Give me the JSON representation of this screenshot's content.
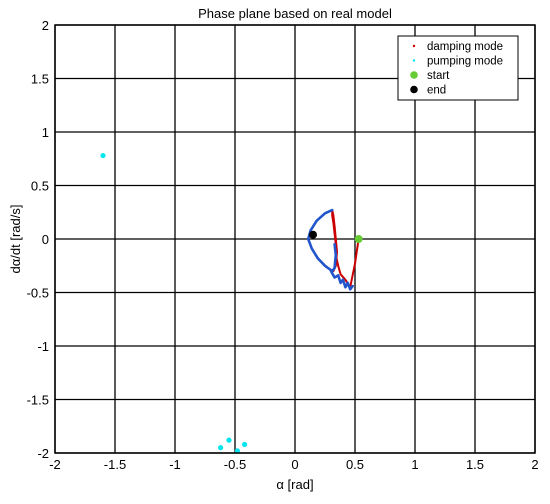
{
  "chart_data": {
    "type": "line",
    "title": "Phase plane based on real model",
    "xlabel": "α [rad]",
    "ylabel": "dα/dt [rad/s]",
    "xlim": [
      -2,
      2
    ],
    "ylim": [
      -2,
      2
    ],
    "xticks": [
      -2,
      -1.5,
      -1,
      -0.5,
      0,
      0.5,
      1,
      1.5,
      2
    ],
    "yticks": [
      -2,
      -1.5,
      -1,
      -0.5,
      0,
      0.5,
      1,
      1.5,
      2
    ],
    "xtick_labels": [
      "-2",
      "-1.5",
      "-1",
      "-0.5",
      "0",
      "0.5",
      "1",
      "1.5",
      "2"
    ],
    "ytick_labels": [
      "-2",
      "-1.5",
      "-1",
      "-0.5",
      "0",
      "0.5",
      "1",
      "1.5",
      "2"
    ],
    "grid": true,
    "legend_position": "top-right",
    "legend": [
      {
        "label": "damping mode",
        "color": "#cc0000",
        "marker": "dot"
      },
      {
        "label": "pumping mode",
        "color": "#00e5ee",
        "marker": "dot"
      },
      {
        "label": "start",
        "color": "#66cc33",
        "marker": "filled-circle"
      },
      {
        "label": "end",
        "color": "#000000",
        "marker": "filled-circle"
      }
    ],
    "series": [
      {
        "name": "damping mode",
        "color": "#cc0000",
        "x": [
          0.53,
          0.5,
          0.46,
          0.42,
          0.38,
          0.36,
          0.34,
          0.34,
          0.33,
          0.32,
          0.31,
          0.31,
          0.32,
          0.33,
          0.34,
          0.35,
          0.34,
          0.32
        ],
        "y": [
          0.0,
          -0.23,
          -0.45,
          -0.38,
          -0.33,
          -0.25,
          -0.15,
          -0.05,
          0.05,
          0.15,
          0.22,
          0.27,
          0.22,
          0.12,
          0.0,
          -0.12,
          -0.25,
          -0.3
        ]
      },
      {
        "name": "",
        "color": "#2255cc",
        "x": [
          0.31,
          0.25,
          0.18,
          0.13,
          0.11,
          0.14,
          0.19,
          0.25,
          0.31,
          0.33,
          0.34,
          0.33
        ],
        "y": [
          0.27,
          0.24,
          0.17,
          0.08,
          0.0,
          -0.09,
          -0.18,
          -0.25,
          -0.3,
          -0.27,
          -0.15,
          -0.05
        ]
      },
      {
        "name": "",
        "color": "#2255cc",
        "x": [
          0.3,
          0.33,
          0.36,
          0.38,
          0.4,
          0.42,
          0.44,
          0.46,
          0.48
        ],
        "y": [
          -0.3,
          -0.36,
          -0.34,
          -0.41,
          -0.38,
          -0.45,
          -0.41,
          -0.47,
          -0.44
        ]
      }
    ],
    "pumping_points": [
      {
        "x": -1.6,
        "y": 0.78
      },
      {
        "x": -0.55,
        "y": -1.88
      },
      {
        "x": -0.42,
        "y": -1.92
      },
      {
        "x": -0.62,
        "y": -1.95
      },
      {
        "x": -0.48,
        "y": -1.98
      }
    ],
    "start_point": {
      "x": 0.53,
      "y": 0.0
    },
    "end_point": {
      "x": 0.15,
      "y": 0.04
    }
  }
}
